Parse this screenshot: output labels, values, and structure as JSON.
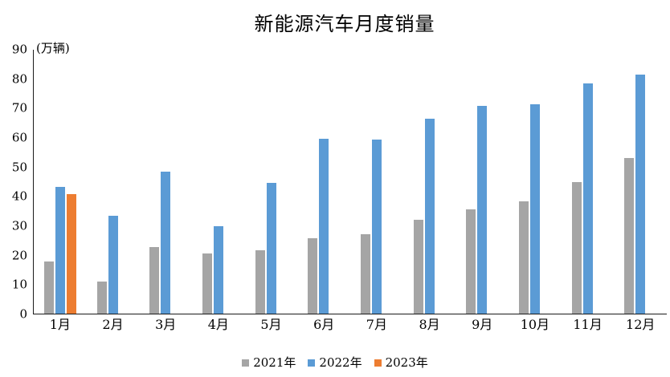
{
  "chart_data": {
    "type": "bar",
    "title": "新能源汽车月度销量",
    "ylabel": "(万辆)",
    "xlabel": "",
    "ylim": [
      0,
      90
    ],
    "yticks": [
      0,
      10,
      20,
      30,
      40,
      50,
      60,
      70,
      80,
      90
    ],
    "grid": false,
    "legend_position": "bottom",
    "categories": [
      "1月",
      "2月",
      "3月",
      "4月",
      "5月",
      "6月",
      "7月",
      "8月",
      "9月",
      "10月",
      "11月",
      "12月"
    ],
    "series": [
      {
        "name": "2021年",
        "color": "#A5A5A5",
        "values": [
          17.9,
          11.0,
          22.6,
          20.6,
          21.7,
          25.6,
          27.1,
          32.1,
          35.7,
          38.3,
          45.0,
          53.1
        ]
      },
      {
        "name": "2022年",
        "color": "#5B9BD5",
        "values": [
          43.1,
          33.4,
          48.4,
          29.9,
          44.7,
          59.6,
          59.3,
          66.6,
          70.8,
          71.4,
          78.6,
          81.4
        ]
      },
      {
        "name": "2023年",
        "color": "#ED7D31",
        "values": [
          40.8,
          null,
          null,
          null,
          null,
          null,
          null,
          null,
          null,
          null,
          null,
          null
        ]
      }
    ]
  }
}
